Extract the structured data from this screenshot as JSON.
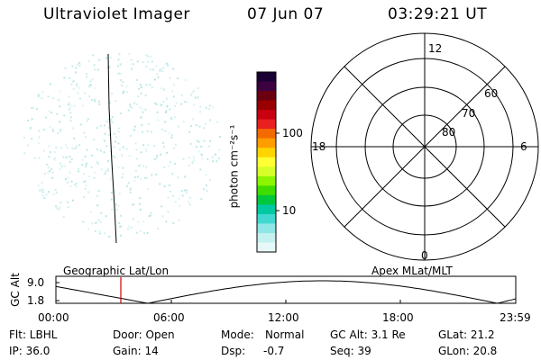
{
  "header": {
    "instrument": "Ultraviolet Imager",
    "date": "07 Jun 07",
    "time": "03:29:21 UT"
  },
  "colorbar": {
    "label": "photon cm⁻²s⁻¹",
    "tick_100": "100",
    "tick_10": "10",
    "colors_top_to_bottom": [
      "#1a0033",
      "#3d0040",
      "#6a0010",
      "#9a0000",
      "#c80010",
      "#e82020",
      "#f26a00",
      "#ff9d00",
      "#ffd400",
      "#ffff33",
      "#d6ff2a",
      "#8cf500",
      "#3fdc00",
      "#00c83c",
      "#00c8a0",
      "#40d8d0",
      "#8fe6e6",
      "#c4f0f0",
      "#e6f8f8"
    ]
  },
  "polar_plot": {
    "mlt_labels": {
      "top": "12",
      "left": "18",
      "right": "6",
      "bottom": "0"
    },
    "lat_labels": [
      "60",
      "70",
      "80"
    ]
  },
  "timeline": {
    "left_label": "Geographic Lat/Lon",
    "right_label": "Apex MLat/MLT",
    "y_axis_title": "GC Alt",
    "y_ticks": [
      "9.0",
      "1.8"
    ],
    "x_ticks": [
      "00:00",
      "06:00",
      "12:00",
      "18:00",
      "23:59"
    ],
    "current_time_color": "#cc0000"
  },
  "status": {
    "flt": "Flt: LBHL",
    "ip": "IP: 36.0",
    "door": "Door: Open",
    "gain": "Gain: 14",
    "mode_label": "Mode:",
    "mode_value": "Normal",
    "dsp_label": "Dsp:",
    "dsp_value": "-0.7",
    "gc_alt": "GC Alt: 3.1 Re",
    "seq": "Seq: 39",
    "glat": "GLat:  21.2",
    "glon": "GLon:  20.8"
  },
  "image_speckle_color": "#a8e0e0"
}
